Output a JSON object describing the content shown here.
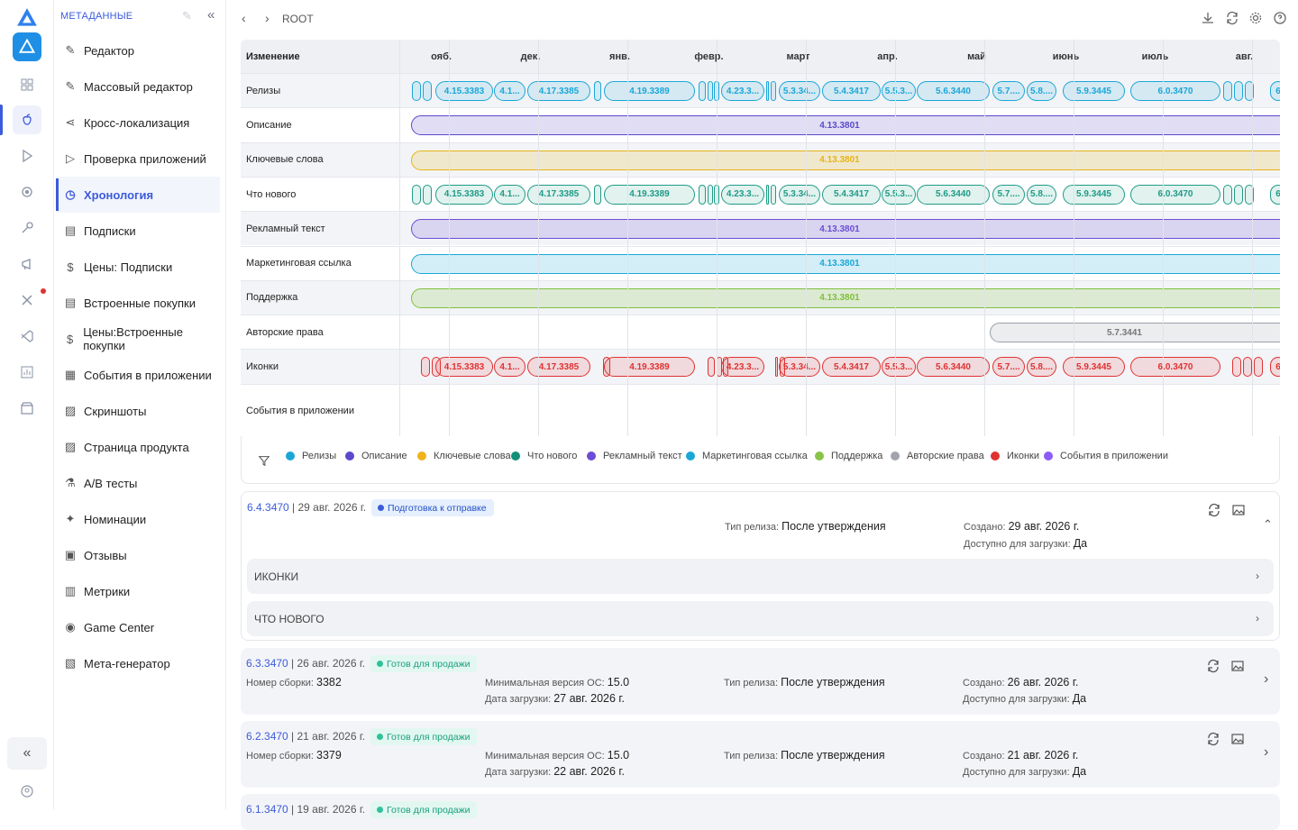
{
  "header": {
    "section": "МЕТАДАННЫЕ",
    "breadcrumb": "ROOT"
  },
  "nav": [
    "Редактор",
    "Массовый редактор",
    "Кросс-локализация",
    "Проверка приложений",
    "Хронология",
    "Подписки",
    "Цены: Подписки",
    "Встроенные покупки",
    "Цены:Встроенные покупки",
    "События в приложении",
    "Скриншоты",
    "Страница продукта",
    "A/B тесты",
    "Номинации",
    "Отзывы",
    "Метрики",
    "Game Center",
    "Мета-генератор"
  ],
  "timeline": {
    "header_label": "Изменение",
    "months": [
      "ояб.",
      "дек.",
      "янв.",
      "февр.",
      "март",
      "апр.",
      "май",
      "июнь",
      "июль",
      "авг."
    ],
    "rows": [
      {
        "label": "Релизы",
        "color": "#1aa7d8",
        "pills": [
          "4.15.3383",
          "4.1...",
          "4.17.3385",
          "4.19.3389",
          "4.23.3...",
          "5.3.34...",
          "5.4.3417",
          "5.5.3...",
          "5.6.3440",
          "5.7....",
          "5.8....",
          "5.9.3445",
          "6.0.3470",
          "6"
        ]
      },
      {
        "label": "Описание",
        "color": "#5a4ac9",
        "pills": [
          "4.13.3801"
        ]
      },
      {
        "label": "Ключевые слова",
        "color": "#e7b416",
        "pills": [
          "4.13.3801"
        ]
      },
      {
        "label": "Что нового",
        "color": "#1f9b86",
        "pills": [
          "4.15.3383",
          "4.1...",
          "4.17.3385",
          "4.19.3389",
          "4.23.3...",
          "5.3.34...",
          "5.4.3417",
          "5.5.3...",
          "5.6.3440",
          "5.7....",
          "5.8....",
          "5.9.3445",
          "6.0.3470",
          "6"
        ]
      },
      {
        "label": "Рекламный текст",
        "color": "#6b4dd6",
        "pills": [
          "4.13.3801"
        ]
      },
      {
        "label": "Маркетинговая ссылка",
        "color": "#1aa7d8",
        "pills": [
          "4.13.3801"
        ]
      },
      {
        "label": "Поддержка",
        "color": "#7fbf3b",
        "pills": [
          "4.13.3801"
        ]
      },
      {
        "label": "Авторские права",
        "color": "#9aa0a8",
        "pills": [
          "5.7.3441"
        ]
      },
      {
        "label": "Иконки",
        "color": "#e03131",
        "pills": [
          "4.15.3383",
          "4.1...",
          "4.17.3385",
          "4.19.3389",
          "4.23.3...",
          "5.3.34...",
          "5.4.3417",
          "5.5.3...",
          "5.6.3440",
          "5.7....",
          "5.8....",
          "5.9.3445",
          "6.0.3470",
          "6"
        ]
      },
      {
        "label": "События в приложении",
        "color": "#8b5cf6",
        "pills": []
      }
    ]
  },
  "legend": [
    {
      "label": "Релизы",
      "color": "#1aa7d8"
    },
    {
      "label": "Описание",
      "color": "#5a4ac9"
    },
    {
      "label": "Ключевые слова",
      "color": "#f2b21b"
    },
    {
      "label": "Что нового",
      "color": "#139079"
    },
    {
      "label": "Рекламный текст",
      "color": "#6b4dd6"
    },
    {
      "label": "Маркетинговая ссылка",
      "color": "#1aa7d8"
    },
    {
      "label": "Поддержка",
      "color": "#8bc34a"
    },
    {
      "label": "Авторские права",
      "color": "#a0a5ad"
    },
    {
      "label": "Иконки",
      "color": "#e03131"
    },
    {
      "label": "События в приложении",
      "color": "#8b5cf6"
    }
  ],
  "releases": [
    {
      "version": "6.4.3470",
      "date": " | 29 авг. 2026 г.",
      "status": "Подготовка к отправке",
      "release_type_label": "Тип релиза:",
      "release_type": "После утверждения",
      "created_label": "Создано:",
      "created": "29 авг. 2026 г.",
      "avail_label": "Доступно для загрузки:",
      "avail": "Да",
      "sections": [
        "ИКОНКИ",
        "ЧТО НОВОГО"
      ]
    },
    {
      "version": "6.3.3470",
      "date": " | 26 авг. 2026 г.",
      "status": "Готов для продажи",
      "build_label": "Номер сборки:",
      "build": "3382",
      "minos_label": "Минимальная версия ОС:",
      "minos": "15.0",
      "upload_label": "Дата загрузки:",
      "upload": "27 авг. 2026 г.",
      "release_type_label": "Тип релиза:",
      "release_type": "После утверждения",
      "created_label": "Создано:",
      "created": "26 авг. 2026 г.",
      "avail_label": "Доступно для загрузки:",
      "avail": "Да"
    },
    {
      "version": "6.2.3470",
      "date": " | 21 авг. 2026 г.",
      "status": "Готов для продажи",
      "build_label": "Номер сборки:",
      "build": "3379",
      "minos_label": "Минимальная версия ОС:",
      "minos": "15.0",
      "upload_label": "Дата загрузки:",
      "upload": "22 авг. 2026 г.",
      "release_type_label": "Тип релиза:",
      "release_type": "После утверждения",
      "created_label": "Создано:",
      "created": "21 авг. 2026 г.",
      "avail_label": "Доступно для загрузки:",
      "avail": "Да"
    },
    {
      "version": "6.1.3470",
      "date": " | 19 авг. 2026 г.",
      "status": "Готов для продажи"
    }
  ]
}
